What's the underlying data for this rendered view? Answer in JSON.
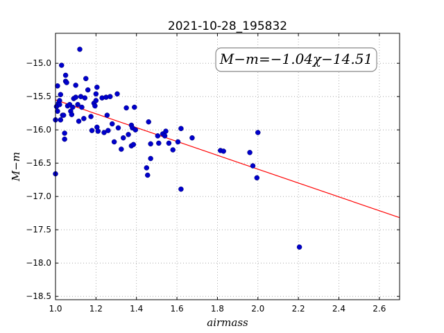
{
  "chart_data": {
    "type": "scatter",
    "title": "2021-10-28_195832",
    "xlabel": "airmass",
    "ylabel": "M−m",
    "xlim": [
      1.0,
      2.7
    ],
    "ylim": [
      -18.55,
      -14.55
    ],
    "y_inverted": true,
    "xticks": [
      1.0,
      1.2,
      1.4,
      1.6,
      1.8,
      2.0,
      2.2,
      2.4,
      2.6
    ],
    "xtick_labels": [
      "1.0",
      "1.2",
      "1.4",
      "1.6",
      "1.8",
      "2.0",
      "2.2",
      "2.4",
      "2.6"
    ],
    "yticks": [
      -15.0,
      -15.5,
      -16.0,
      -16.5,
      -17.0,
      -17.5,
      -18.0,
      -18.5
    ],
    "ytick_labels": [
      "−15.0",
      "−15.5",
      "−16.0",
      "−16.5",
      "−17.0",
      "−17.5",
      "−18.0",
      "−18.5"
    ],
    "grid": true,
    "annotation": "M−m=−1.04χ−14.51",
    "fit": {
      "slope": -1.04,
      "intercept": -14.51,
      "color": "#ff0000"
    },
    "point_color": "#0000cc",
    "points": [
      [
        1.0,
        -16.66
      ],
      [
        1.0,
        -15.85
      ],
      [
        1.005,
        -15.65
      ],
      [
        1.01,
        -15.72
      ],
      [
        1.01,
        -15.34
      ],
      [
        1.015,
        -15.6
      ],
      [
        1.02,
        -15.56
      ],
      [
        1.02,
        -15.62
      ],
      [
        1.025,
        -15.85
      ],
      [
        1.025,
        -15.47
      ],
      [
        1.03,
        -15.03
      ],
      [
        1.035,
        -15.78
      ],
      [
        1.04,
        -15.78
      ],
      [
        1.045,
        -16.05
      ],
      [
        1.045,
        -16.14
      ],
      [
        1.05,
        -15.27
      ],
      [
        1.05,
        -15.18
      ],
      [
        1.055,
        -15.29
      ],
      [
        1.06,
        -15.64
      ],
      [
        1.07,
        -15.62
      ],
      [
        1.075,
        -15.72
      ],
      [
        1.08,
        -15.77
      ],
      [
        1.085,
        -15.66
      ],
      [
        1.09,
        -15.53
      ],
      [
        1.1,
        -15.51
      ],
      [
        1.1,
        -15.33
      ],
      [
        1.11,
        -15.62
      ],
      [
        1.115,
        -15.87
      ],
      [
        1.12,
        -14.79
      ],
      [
        1.125,
        -15.5
      ],
      [
        1.13,
        -15.66
      ],
      [
        1.14,
        -15.83
      ],
      [
        1.145,
        -15.52
      ],
      [
        1.15,
        -15.23
      ],
      [
        1.16,
        -15.4
      ],
      [
        1.175,
        -15.8
      ],
      [
        1.18,
        -16.01
      ],
      [
        1.19,
        -15.6
      ],
      [
        1.195,
        -15.64
      ],
      [
        1.2,
        -15.56
      ],
      [
        1.2,
        -15.46
      ],
      [
        1.205,
        -15.36
      ],
      [
        1.205,
        -15.96
      ],
      [
        1.21,
        -16.02
      ],
      [
        1.23,
        -15.52
      ],
      [
        1.24,
        -16.04
      ],
      [
        1.25,
        -15.51
      ],
      [
        1.255,
        -15.78
      ],
      [
        1.26,
        -16.01
      ],
      [
        1.27,
        -15.5
      ],
      [
        1.28,
        -15.91
      ],
      [
        1.29,
        -16.18
      ],
      [
        1.305,
        -15.46
      ],
      [
        1.31,
        -15.97
      ],
      [
        1.325,
        -16.29
      ],
      [
        1.335,
        -16.12
      ],
      [
        1.35,
        -15.67
      ],
      [
        1.36,
        -16.07
      ],
      [
        1.375,
        -15.93
      ],
      [
        1.375,
        -16.24
      ],
      [
        1.38,
        -15.97
      ],
      [
        1.385,
        -16.22
      ],
      [
        1.39,
        -15.66
      ],
      [
        1.395,
        -16.0
      ],
      [
        1.45,
        -16.57
      ],
      [
        1.455,
        -16.68
      ],
      [
        1.46,
        -15.88
      ],
      [
        1.47,
        -16.21
      ],
      [
        1.47,
        -16.43
      ],
      [
        1.505,
        -16.09
      ],
      [
        1.51,
        -16.2
      ],
      [
        1.53,
        -16.06
      ],
      [
        1.54,
        -16.09
      ],
      [
        1.545,
        -16.02
      ],
      [
        1.56,
        -16.2
      ],
      [
        1.58,
        -16.3
      ],
      [
        1.605,
        -16.18
      ],
      [
        1.62,
        -15.98
      ],
      [
        1.62,
        -16.89
      ],
      [
        1.675,
        -16.12
      ],
      [
        1.815,
        -16.31
      ],
      [
        1.83,
        -16.32
      ],
      [
        1.96,
        -16.34
      ],
      [
        1.975,
        -16.54
      ],
      [
        1.995,
        -16.72
      ],
      [
        2.0,
        -16.04
      ],
      [
        2.205,
        -17.76
      ]
    ]
  }
}
